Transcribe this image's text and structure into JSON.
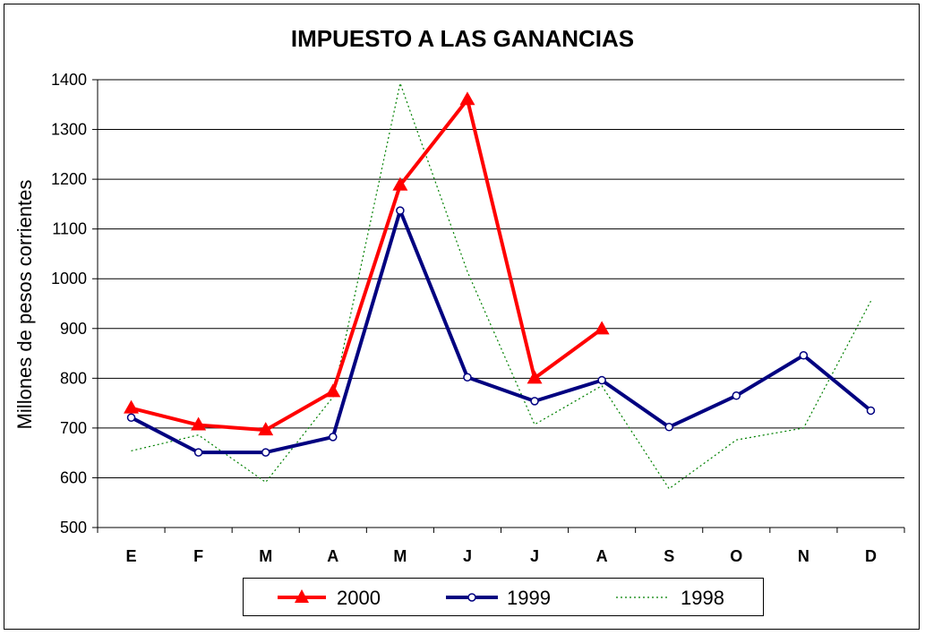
{
  "chart_data": {
    "type": "line",
    "title": "IMPUESTO A LAS GANANCIAS",
    "xlabel": "",
    "ylabel": "Millones de pesos corrientes",
    "ylim": [
      500,
      1400
    ],
    "yticks": [
      500,
      600,
      700,
      800,
      900,
      1000,
      1100,
      1200,
      1300,
      1400
    ],
    "categories": [
      "E",
      "F",
      "M",
      "A",
      "M",
      "J",
      "J",
      "A",
      "S",
      "O",
      "N",
      "D"
    ],
    "grid": true,
    "legend_position": "bottom",
    "series": [
      {
        "name": "2000",
        "color": "#ff0000",
        "marker": "triangle",
        "style": "solid",
        "values": [
          740,
          706,
          696,
          773,
          1188,
          1360,
          800,
          899,
          null,
          null,
          null,
          null
        ]
      },
      {
        "name": "1999",
        "color": "#000080",
        "marker": "circle",
        "style": "solid",
        "values": [
          721,
          651,
          651,
          682,
          1137,
          802,
          754,
          796,
          702,
          765,
          846,
          735
        ]
      },
      {
        "name": "1998",
        "color": "#008000",
        "marker": "none",
        "style": "dotted",
        "values": [
          654,
          686,
          591,
          762,
          1393,
          1014,
          707,
          785,
          578,
          676,
          700,
          955
        ]
      }
    ]
  }
}
